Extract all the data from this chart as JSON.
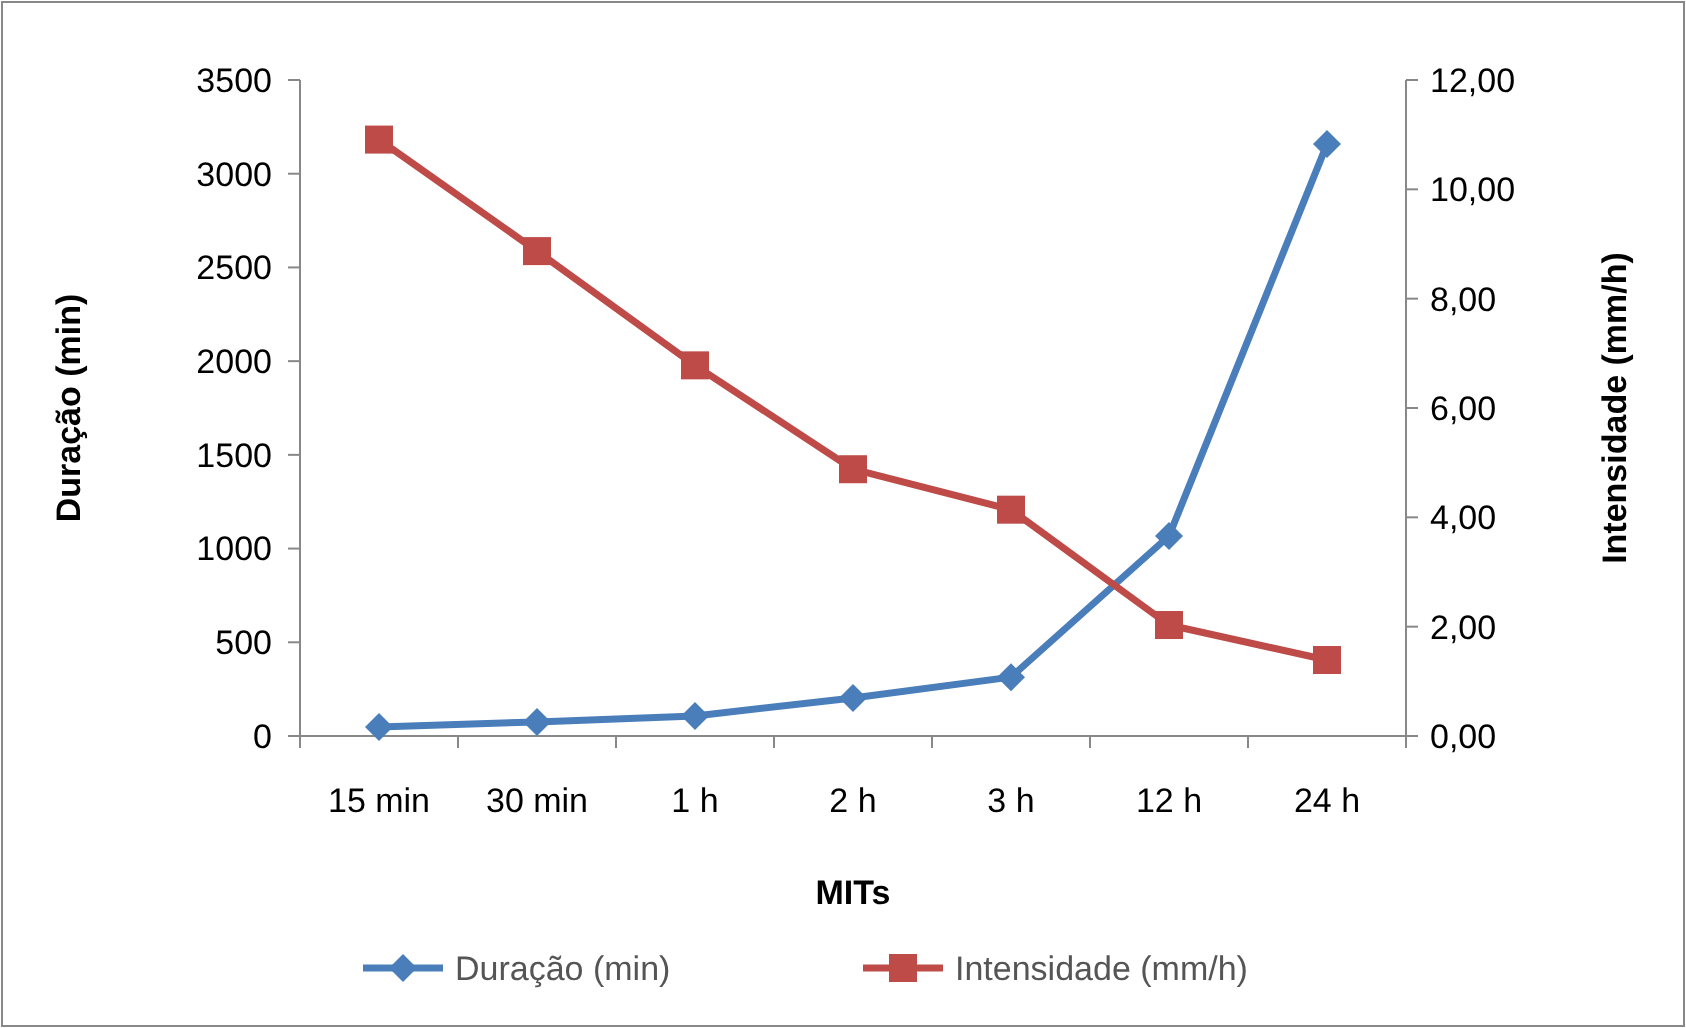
{
  "chart_data": {
    "type": "line",
    "xlabel": "MITs",
    "ylabel": "Duração (min)",
    "y2label": "Intensidade (mm/h)",
    "categories": [
      "15 min",
      "30 min",
      "1 h",
      "2 h",
      "3 h",
      "12 h",
      "24 h"
    ],
    "ylim": [
      0,
      3500
    ],
    "yticks": [
      0,
      500,
      1000,
      1500,
      2000,
      2500,
      3000,
      3500
    ],
    "y2lim": [
      0,
      12
    ],
    "y2ticks": [
      {
        "value": 0,
        "label": "0,00"
      },
      {
        "value": 2,
        "label": "2,00"
      },
      {
        "value": 4,
        "label": "4,00"
      },
      {
        "value": 6,
        "label": "6,00"
      },
      {
        "value": 8,
        "label": "8,00"
      },
      {
        "value": 10,
        "label": "10,00"
      },
      {
        "value": 12,
        "label": "12,00"
      }
    ],
    "series": [
      {
        "name": "Duração (min)",
        "color": "#4a7ebb",
        "marker": "diamond",
        "values": [
          48,
          75,
          107,
          203,
          314,
          1067,
          3158
        ]
      },
      {
        "name": "Intensidade (mm/h)",
        "color": "#be4b48",
        "marker": "square",
        "axis": "y2",
        "values": [
          10.91,
          8.87,
          6.78,
          4.88,
          4.14,
          2.03,
          1.39
        ]
      }
    ],
    "legend": "bottom",
    "grid": false
  }
}
